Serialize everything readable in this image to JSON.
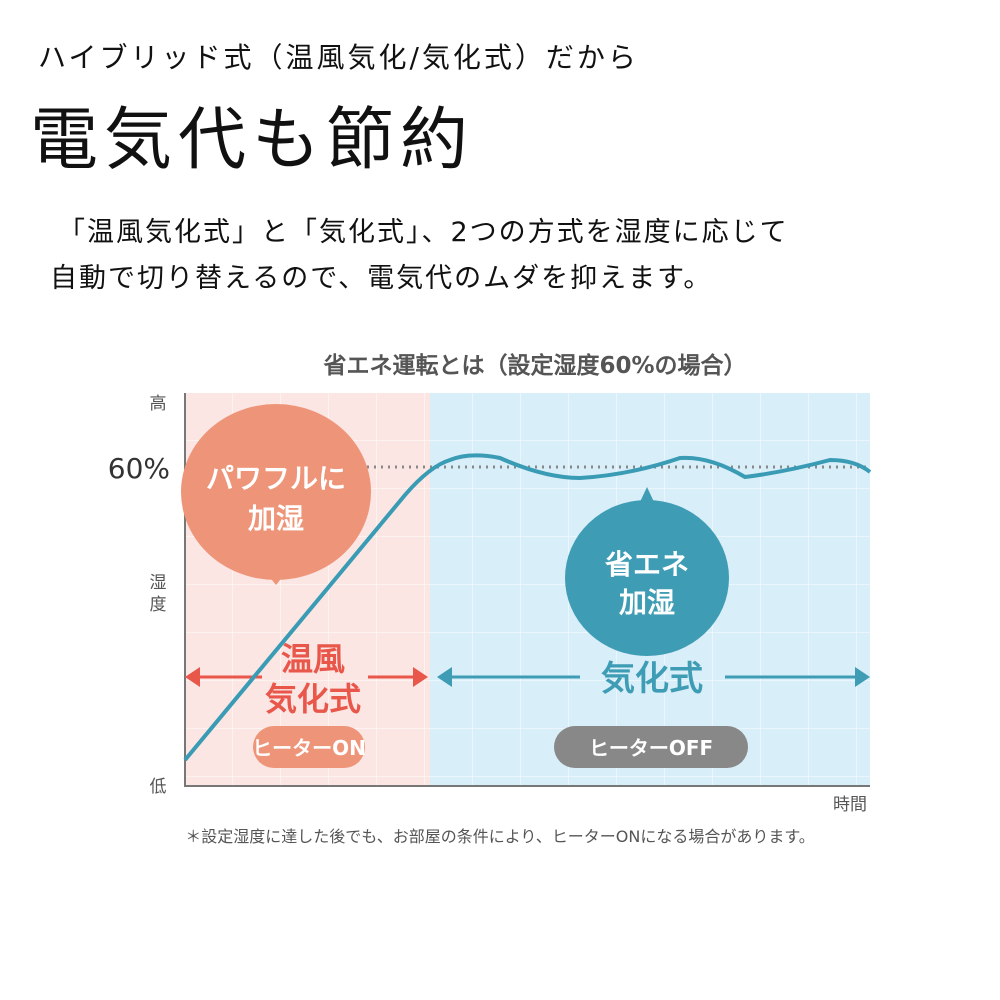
{
  "header": {
    "subtitle": "ハイブリッド式（温風気化/気化式）だから",
    "headline": "電気代も節約",
    "description_lines": [
      "「温風気化式」と「気化式」、2つの方式を湿度に応じて",
      "自動で切り替えるので、電気代のムダを抑えます。"
    ]
  },
  "diagram": {
    "title": "省エネ運転とは（設定湿度60%の場合）",
    "y_axis": {
      "top": "高",
      "label": [
        "湿",
        "度"
      ],
      "bottom": "低"
    },
    "x_axis": {
      "label": "時間"
    },
    "setpoint_label": "60%",
    "phases": [
      {
        "mode": [
          "温風",
          "気化式"
        ],
        "bubble": [
          "パワフルに",
          "加湿"
        ],
        "heater": "ヒーターON",
        "color": "#e8704f",
        "bubble_color": "#ee9478",
        "bg": "#fbe6e4"
      },
      {
        "mode": [
          "気化式"
        ],
        "bubble": [
          "省エネ",
          "加湿"
        ],
        "heater": "ヒーターOFF",
        "color": "#3e9cb5",
        "bubble_color": "#3e9cb5",
        "bg": "#d8eef8"
      }
    ],
    "line_color": "#3a9bb5",
    "footnote": "＊設定湿度に達した後でも、お部屋の条件により、ヒーターONになる場合があります。"
  }
}
